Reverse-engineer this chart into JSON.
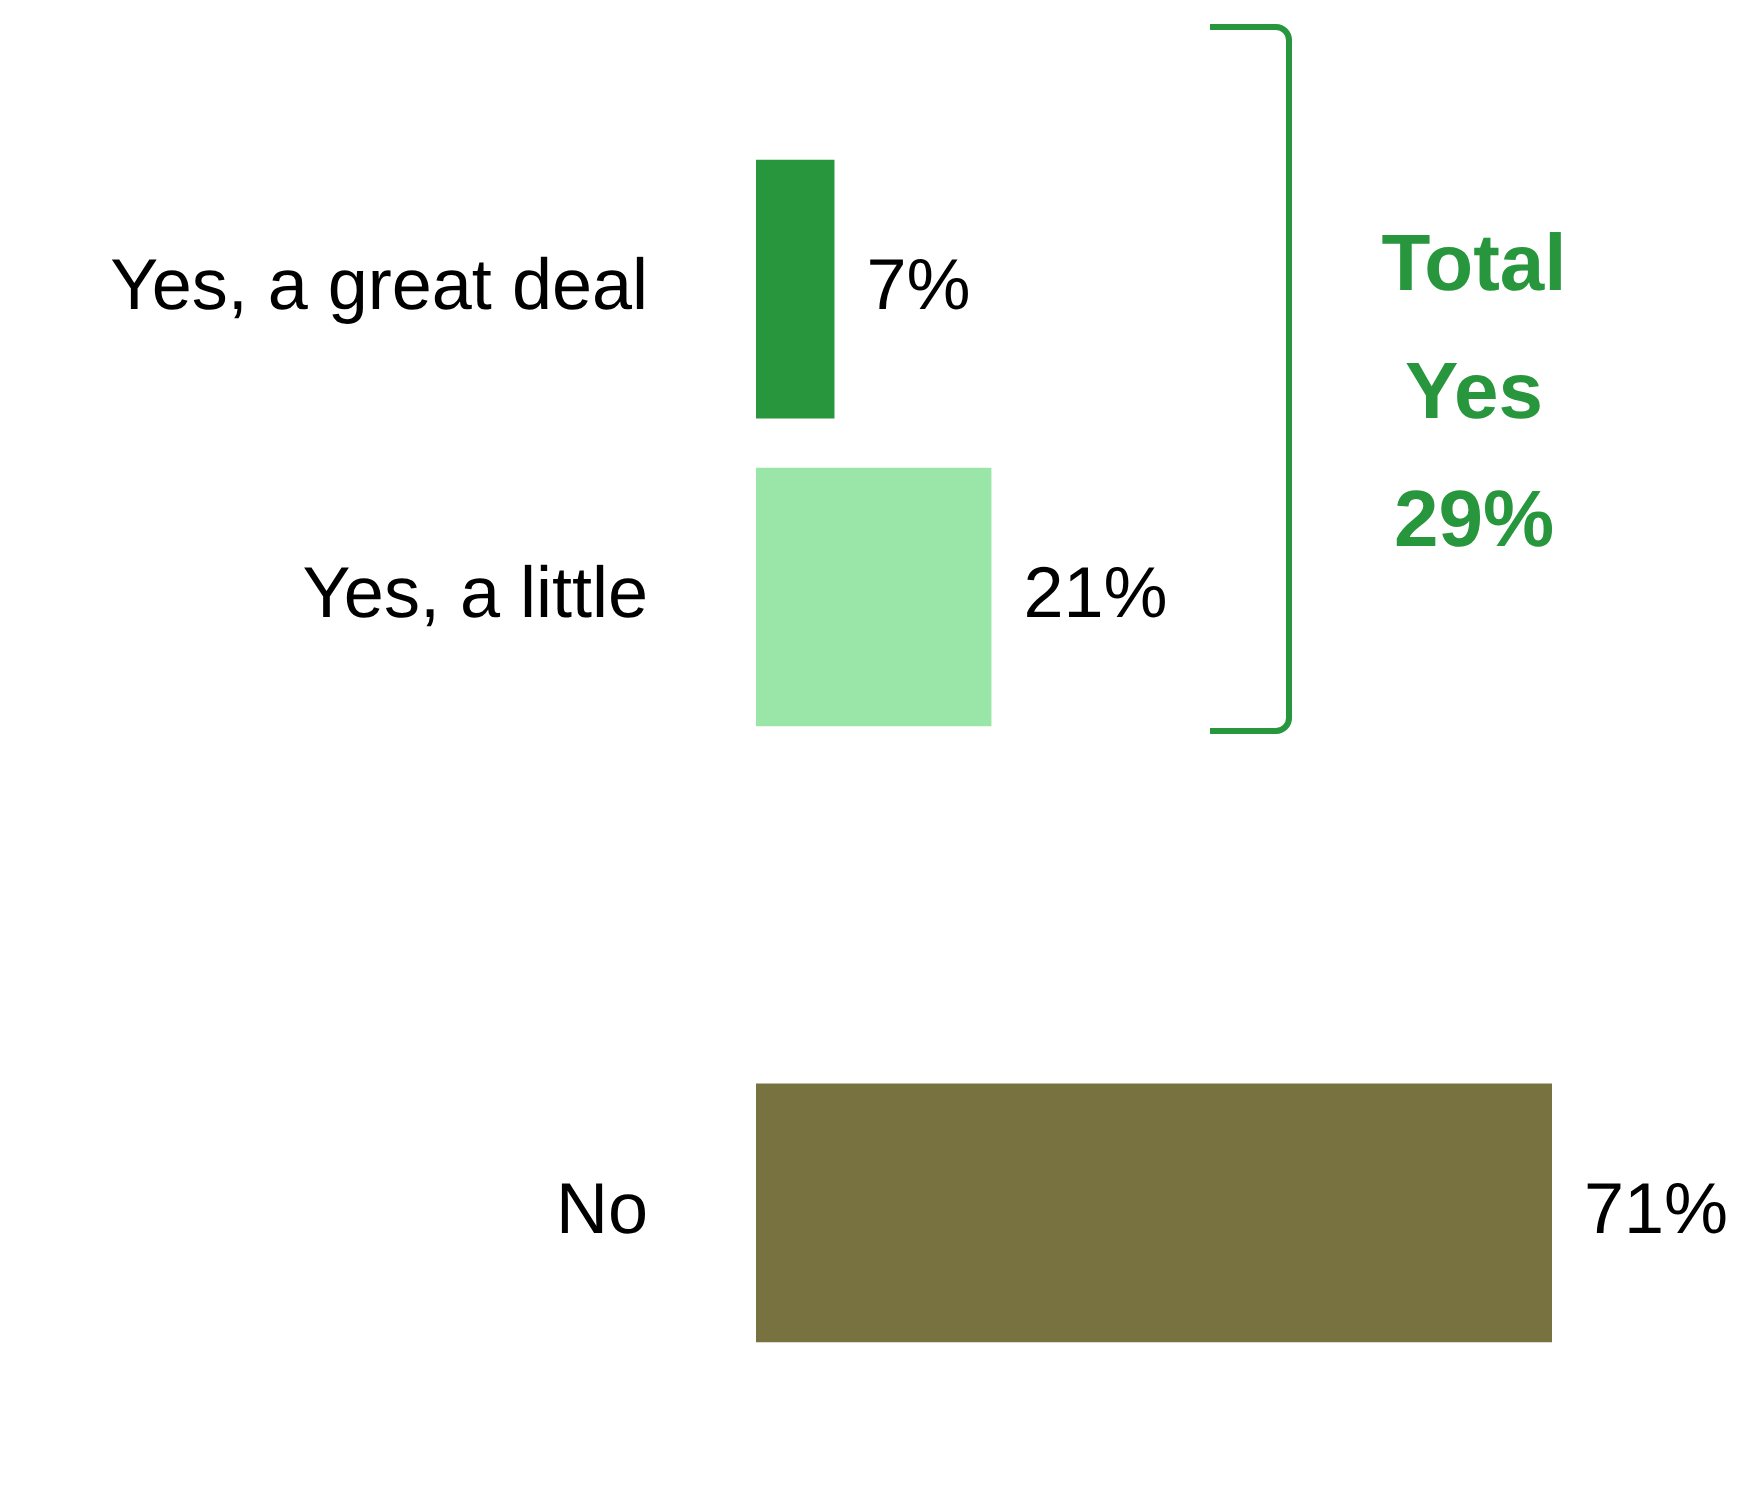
{
  "chart_data": {
    "type": "bar",
    "orientation": "horizontal",
    "categories": [
      "Yes, a great deal",
      "Yes, a little",
      null,
      "No"
    ],
    "values": [
      7,
      21,
      null,
      71
    ],
    "colors": [
      "#27963c",
      "#9ae6a8",
      "#9ae6a8",
      "#787240"
    ],
    "value_labels": [
      "7%",
      "21%",
      null,
      "71%"
    ],
    "annotations": [
      "Total Yes 29%"
    ]
  }
}
